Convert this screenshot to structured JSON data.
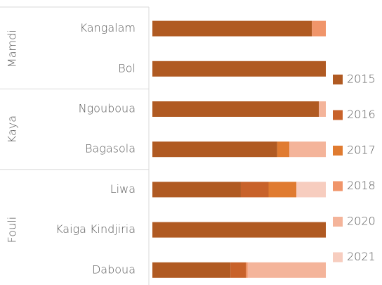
{
  "chart_data": {
    "type": "stacked-barh",
    "groups": [
      {
        "name": "Mamdi",
        "categories": [
          "Kangalam",
          "Bol"
        ]
      },
      {
        "name": "Kaya",
        "categories": [
          "Ngouboua",
          "Bagasola"
        ]
      },
      {
        "name": "Fouli",
        "categories": [
          "Liwa",
          "Kaiga Kindjiria",
          "Daboua"
        ]
      }
    ],
    "xlim": [
      0,
      100
    ],
    "series": [
      {
        "name": "2015",
        "color": "#b05a22",
        "values": [
          92,
          100,
          96,
          72,
          51,
          100,
          45
        ]
      },
      {
        "name": "2016",
        "color": "#c8622a",
        "values": [
          0,
          0,
          0,
          0,
          16,
          0,
          9
        ]
      },
      {
        "name": "2017",
        "color": "#e07b30",
        "values": [
          0,
          0,
          0,
          7,
          16,
          0,
          0
        ]
      },
      {
        "name": "2018",
        "color": "#f0956a",
        "values": [
          8,
          0,
          0,
          0,
          0,
          0,
          1
        ]
      },
      {
        "name": "2020",
        "color": "#f4b49a",
        "values": [
          0,
          0,
          4,
          21,
          0,
          0,
          45
        ]
      },
      {
        "name": "2021",
        "color": "#f7cdbf",
        "values": [
          0,
          0,
          0,
          0,
          17,
          0,
          0
        ]
      }
    ]
  }
}
